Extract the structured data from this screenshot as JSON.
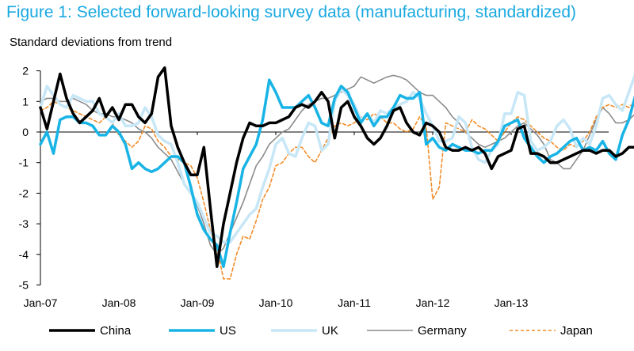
{
  "title": "Figure 1: Selected forward-looking survey data (manufacturing, standardized)",
  "ylabel": "Standard deviations from trend",
  "chart_data": {
    "type": "line",
    "title": "Figure 1: Selected forward-looking survey data (manufacturing, standardized)",
    "ylabel": "Standard deviations from trend",
    "xlabel": "",
    "ylim": [
      -5,
      2
    ],
    "yticks": [
      -5,
      -4,
      -3,
      -2,
      -1,
      0,
      1,
      2
    ],
    "xlim": [
      "2007-01",
      "2013-11"
    ],
    "xtick_labels": [
      "Jan-07",
      "Jan-08",
      "Jan-09",
      "Jan-10",
      "Jan-11",
      "Jan-12",
      "Jan-13"
    ],
    "grid": false,
    "legend": "bottom",
    "series": [
      {
        "name": "China",
        "color": "#000000",
        "style": "solid",
        "width": 3.5,
        "values": [
          0.8,
          0.1,
          1.0,
          1.9,
          1.1,
          0.6,
          0.3,
          0.5,
          0.7,
          1.1,
          0.5,
          0.8,
          0.4,
          0.9,
          0.9,
          0.5,
          0.3,
          0.6,
          1.8,
          2.1,
          0.2,
          -0.5,
          -1.0,
          -1.4,
          -1.4,
          -0.5,
          -2.5,
          -4.4,
          -3.0,
          -2.0,
          -1.0,
          -0.2,
          0.3,
          0.2,
          0.2,
          0.3,
          0.3,
          0.4,
          0.5,
          0.8,
          0.9,
          0.8,
          1.0,
          1.3,
          1.0,
          -0.2,
          0.8,
          1.0,
          0.5,
          0.2,
          -0.2,
          -0.4,
          -0.2,
          0.2,
          0.7,
          0.8,
          0.3,
          0.0,
          -0.1,
          0.3,
          0.2,
          0.0,
          -0.5,
          -0.6,
          -0.6,
          -0.5,
          -0.6,
          -0.5,
          -0.7,
          -1.2,
          -0.8,
          -0.7,
          -0.6,
          0.1,
          0.2,
          -0.7,
          -0.7,
          -0.8,
          -1.0,
          -1.0,
          -0.9,
          -0.8,
          -0.7,
          -0.6,
          -0.6,
          -0.7,
          -0.6,
          -0.6,
          -0.8,
          -0.7,
          -0.5,
          -0.5
        ]
      },
      {
        "name": "US",
        "color": "#19b4e6",
        "style": "solid",
        "width": 3.5,
        "values": [
          -0.4,
          0.0,
          -0.7,
          0.4,
          0.5,
          0.5,
          0.3,
          0.3,
          0.2,
          -0.1,
          -0.1,
          0.2,
          0.0,
          -0.4,
          -1.2,
          -1.0,
          -1.2,
          -1.3,
          -1.2,
          -1.0,
          -0.8,
          -0.8,
          -1.0,
          -1.8,
          -2.7,
          -3.2,
          -3.5,
          -3.7,
          -4.4,
          -3.3,
          -2.3,
          -1.2,
          -0.8,
          -0.4,
          0.4,
          1.7,
          1.3,
          0.8,
          0.8,
          0.8,
          1.0,
          1.2,
          0.8,
          0.3,
          0.2,
          1.1,
          1.5,
          1.3,
          0.8,
          0.3,
          0.6,
          0.2,
          0.5,
          0.5,
          0.8,
          1.2,
          1.1,
          1.1,
          1.3,
          -0.4,
          -0.2,
          -0.5,
          -0.6,
          -0.4,
          -0.5,
          -0.6,
          -0.6,
          -0.7,
          -0.6,
          -0.6,
          -0.3,
          0.2,
          0.3,
          0.4,
          -0.2,
          -0.5,
          -0.8,
          -1.0,
          -0.8,
          -0.7,
          -0.5,
          -0.3,
          -0.2,
          -0.6,
          -0.5,
          -0.6,
          -0.3,
          -0.7,
          -0.9,
          -0.1,
          0.4,
          1.2,
          0.8
        ]
      },
      {
        "name": "UK",
        "color": "#c7e7f7",
        "style": "solid",
        "width": 3.5,
        "values": [
          0.8,
          1.5,
          1.2,
          0.9,
          0.8,
          1.2,
          1.1,
          1.0,
          1.0,
          0.6,
          0.5,
          0.3,
          0.6,
          0.2,
          0.2,
          0.3,
          0.8,
          0.5,
          -0.1,
          -0.3,
          -0.4,
          -1.0,
          -1.7,
          -2.0,
          -2.3,
          -2.8,
          -3.3,
          -3.4,
          -3.6,
          -3.6,
          -3.3,
          -3.0,
          -2.7,
          -2.5,
          -1.8,
          -1.2,
          -0.4,
          -0.2,
          -0.7,
          -0.8,
          -0.2,
          0.3,
          0.2,
          -0.6,
          -0.4,
          1.0,
          1.4,
          1.2,
          0.9,
          0.4,
          0.6,
          0.3,
          0.7,
          0.6,
          0.8,
          0.9,
          1.0,
          1.3,
          1.1,
          0.6,
          0.2,
          -0.3,
          -0.3,
          -0.2,
          0.5,
          0.3,
          -0.5,
          -0.9,
          -1.0,
          -0.6,
          -0.4,
          0.6,
          0.6,
          1.3,
          1.2,
          -0.3,
          -0.6,
          -0.5,
          -0.3,
          0.2,
          0.4,
          0.1,
          -0.5,
          -0.2,
          -0.4,
          0.2,
          1.1,
          1.2,
          0.9,
          0.7,
          1.3,
          1.9
        ]
      },
      {
        "name": "Germany",
        "color": "#8c8c8c",
        "style": "solid",
        "width": 1.6,
        "values": [
          1.0,
          1.1,
          1.1,
          1.0,
          1.0,
          1.1,
          1.0,
          0.9,
          0.7,
          0.6,
          0.6,
          0.5,
          0.5,
          0.4,
          0.3,
          0.1,
          0.0,
          -0.2,
          -0.5,
          -0.7,
          -0.9,
          -1.3,
          -1.7,
          -2.0,
          -2.4,
          -3.0,
          -3.7,
          -4.0,
          -3.8,
          -3.3,
          -2.8,
          -2.3,
          -1.7,
          -1.1,
          -0.8,
          -0.4,
          -0.2,
          0.0,
          0.1,
          0.4,
          0.7,
          0.9,
          1.0,
          1.1,
          1.1,
          1.2,
          1.3,
          1.4,
          1.5,
          1.8,
          1.7,
          1.6,
          1.7,
          1.8,
          1.85,
          1.8,
          1.7,
          1.5,
          1.3,
          1.2,
          1.2,
          1.0,
          0.8,
          0.5,
          0.3,
          0.0,
          -0.2,
          -0.4,
          -0.5,
          -0.4,
          -0.3,
          -0.2,
          0.0,
          0.2,
          0.3,
          0.1,
          -0.1,
          -0.4,
          -0.9,
          -1.0,
          -1.2,
          -1.2,
          -0.9,
          -0.6,
          -0.1,
          0.4,
          0.8,
          0.6,
          0.3,
          0.3,
          0.4,
          0.6,
          0.7
        ]
      },
      {
        "name": "Japan",
        "color": "#f28c28",
        "style": "dashed",
        "width": 1.6,
        "values": [
          0.7,
          0.8,
          1.0,
          0.9,
          0.8,
          0.7,
          0.6,
          0.5,
          0.4,
          0.3,
          0.5,
          0.3,
          -0.1,
          -0.3,
          -0.5,
          -0.3,
          0.2,
          0.1,
          -0.3,
          -0.5,
          -0.8,
          -0.9,
          -1.0,
          -1.1,
          -1.5,
          -2.3,
          -3.2,
          -3.8,
          -4.8,
          -4.8,
          -4.0,
          -3.4,
          -3.5,
          -2.9,
          -2.2,
          -1.8,
          -1.1,
          -1.0,
          -0.7,
          -0.5,
          -0.5,
          -0.8,
          -1.0,
          -0.6,
          -0.2,
          0.2,
          0.3,
          0.2,
          0.3,
          0.5,
          0.4,
          0.6,
          0.5,
          0.3,
          0.3,
          0.1,
          0.0,
          0.1,
          0.5,
          0.2,
          -2.2,
          -1.8,
          0.3,
          0.2,
          0.1,
          0.0,
          0.4,
          0.2,
          0.1,
          -0.1,
          -0.3,
          0.0,
          0.3,
          0.5,
          0.4,
          0.2,
          0.0,
          -0.2,
          -0.3,
          -0.5,
          -0.6,
          -0.4,
          -0.5,
          -0.3,
          0.0,
          0.5,
          0.8,
          0.9,
          0.8,
          0.9,
          0.8,
          1.0,
          1.2
        ]
      }
    ]
  }
}
